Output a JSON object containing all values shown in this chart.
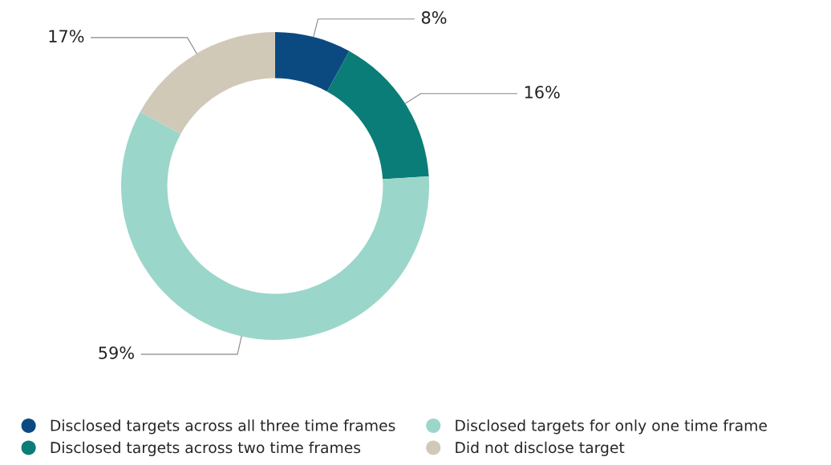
{
  "chart_data": {
    "type": "donut",
    "categories": [
      "Disclosed targets across all three time frames",
      "Disclosed targets across two time frames",
      "Disclosed targets for only one time frame",
      "Did not disclose target"
    ],
    "values": [
      8,
      16,
      59,
      17
    ],
    "colors": [
      "#0b4a80",
      "#0b7d78",
      "#9bd6ca",
      "#d1c9b8"
    ],
    "value_labels": [
      "8%",
      "16%",
      "59%",
      "17%"
    ],
    "legend": "bottom"
  }
}
